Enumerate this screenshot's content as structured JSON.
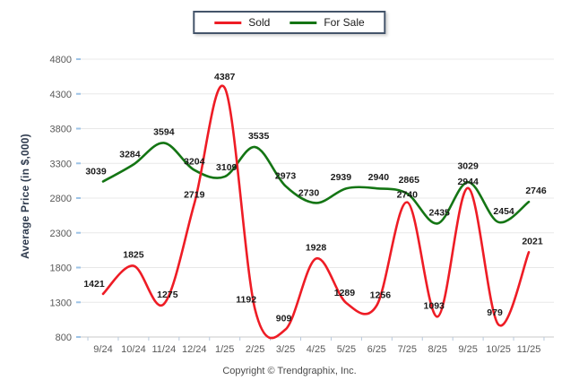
{
  "legend": {
    "items": [
      {
        "label": "Sold",
        "color": "#ee1c25"
      },
      {
        "label": "For Sale",
        "color": "#147514"
      }
    ]
  },
  "chart_data": {
    "type": "line",
    "title": "",
    "xlabel": "",
    "ylabel": "Average Price (in $,000)",
    "categories": [
      "9/24",
      "10/24",
      "11/24",
      "12/24",
      "1/25",
      "2/25",
      "3/25",
      "4/25",
      "5/25",
      "6/25",
      "7/25",
      "8/25",
      "9/25",
      "10/25",
      "11/25"
    ],
    "series": [
      {
        "name": "Sold",
        "color": "#ee1c25",
        "values": [
          1421,
          1825,
          1275,
          2719,
          4387,
          1192,
          909,
          1928,
          1289,
          1256,
          2740,
          1093,
          2944,
          979,
          2021
        ]
      },
      {
        "name": "For Sale",
        "color": "#147514",
        "values": [
          3039,
          3284,
          3594,
          3204,
          3109,
          3535,
          2973,
          2730,
          2939,
          2940,
          2865,
          2435,
          3029,
          2454,
          2746
        ]
      }
    ],
    "ylim": [
      800,
      4800
    ],
    "yticks": [
      800,
      1300,
      1800,
      2300,
      2800,
      3300,
      3800,
      4300,
      4800
    ],
    "grid": true,
    "legend_position": "top-center",
    "curve": "smooth",
    "data_labels": true
  },
  "footer": {
    "copyright": "Copyright © Trendgraphix, Inc."
  },
  "colors": {
    "gridline": "#e8e8e8",
    "axis_line": "#c9c9c9",
    "tick_mark": "#9dc3e6",
    "tick_label": "#595959",
    "data_label": "#1a1a1a"
  }
}
